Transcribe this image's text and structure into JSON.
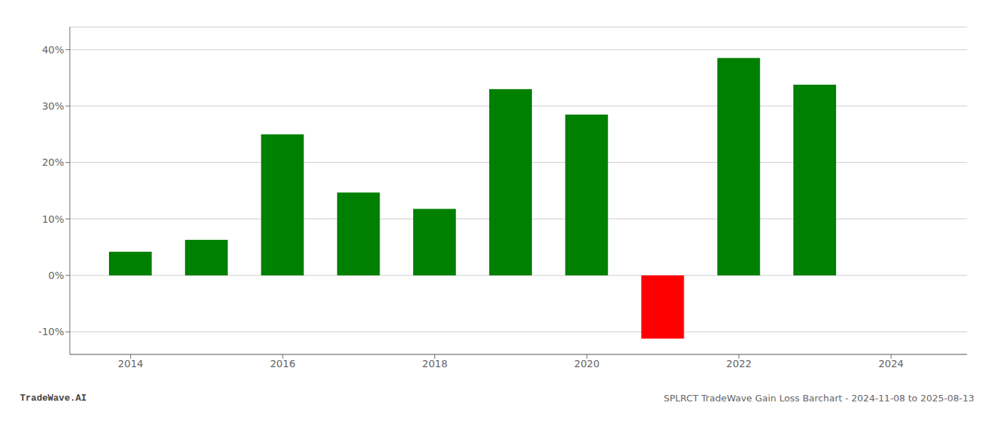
{
  "chart_data": {
    "type": "bar",
    "x": [
      2014,
      2015,
      2016,
      2017,
      2018,
      2019,
      2020,
      2021,
      2022,
      2023
    ],
    "values": [
      4.2,
      6.3,
      25.0,
      14.7,
      11.8,
      33.0,
      28.5,
      -11.2,
      38.5,
      33.8
    ],
    "colors": [
      "#008000",
      "#008000",
      "#008000",
      "#008000",
      "#008000",
      "#008000",
      "#008000",
      "#ff0000",
      "#008000",
      "#008000"
    ],
    "xlim": [
      2013.2,
      2025.0
    ],
    "xticks": [
      2014,
      2016,
      2018,
      2020,
      2022,
      2024
    ],
    "ylim": [
      -14,
      44
    ],
    "yticks": [
      {
        "value": -10,
        "label": "-10%"
      },
      {
        "value": 0,
        "label": "0%"
      },
      {
        "value": 10,
        "label": "10%"
      },
      {
        "value": 20,
        "label": "20%"
      },
      {
        "value": 30,
        "label": "30%"
      },
      {
        "value": 40,
        "label": "40%"
      }
    ],
    "grid": true,
    "annotations": [
      "TradeWave.AI",
      "SPLRCT TradeWave Gain Loss Barchart - 2024-11-08 to 2025-08-13"
    ]
  }
}
